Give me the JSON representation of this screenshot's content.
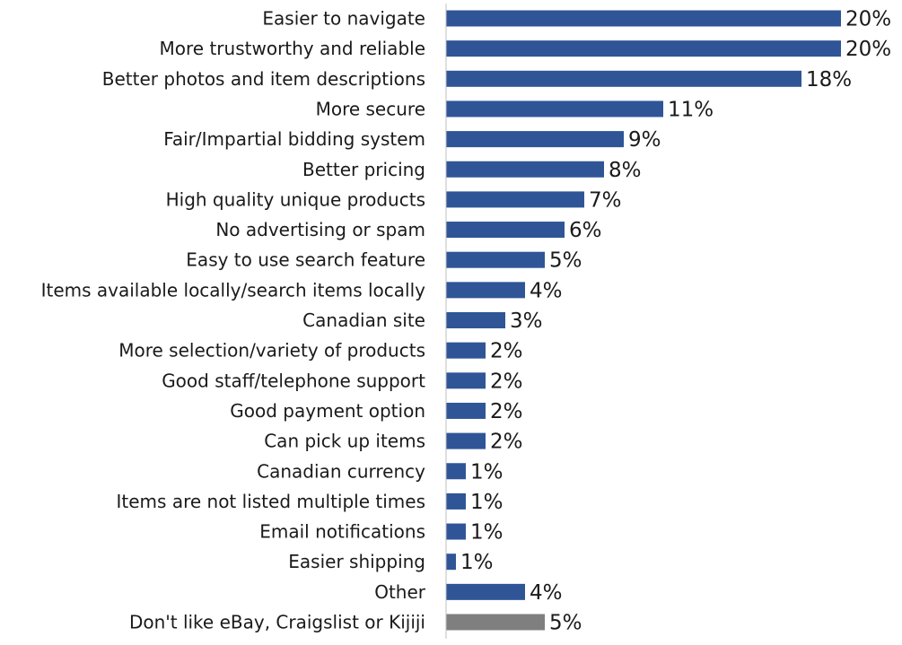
{
  "chart_data": {
    "type": "bar",
    "orientation": "horizontal",
    "categories": [
      "Easier to navigate",
      "More trustworthy and reliable",
      "Better photos and item descriptions",
      "More secure",
      "Fair/Impartial bidding system",
      "Better pricing",
      "High quality unique products",
      "No advertising or spam",
      "Easy to use search feature",
      "Items available locally/search items locally",
      "Canadian site",
      "More selection/variety of products",
      "Good staff/telephone support",
      "Good payment option",
      "Can pick up items",
      "Canadian currency",
      "Items are not listed multiple times",
      "Email notifications",
      "Easier shipping",
      "Other",
      "Don't like eBay, Craigslist or Kijiji"
    ],
    "values": [
      20,
      20,
      18,
      11,
      9,
      8,
      7,
      6,
      5,
      4,
      3,
      2,
      2,
      2,
      2,
      1,
      1,
      1,
      0.5,
      4,
      5
    ],
    "value_labels": [
      "20%",
      "20%",
      "18%",
      "11%",
      "9%",
      "8%",
      "7%",
      "6%",
      "5%",
      "4%",
      "3%",
      "2%",
      "2%",
      "2%",
      "2%",
      "1%",
      "1%",
      "1%",
      "1%",
      "4%",
      "5%"
    ],
    "bar_colors": [
      "#2f5597",
      "#2f5597",
      "#2f5597",
      "#2f5597",
      "#2f5597",
      "#2f5597",
      "#2f5597",
      "#2f5597",
      "#2f5597",
      "#2f5597",
      "#2f5597",
      "#2f5597",
      "#2f5597",
      "#2f5597",
      "#2f5597",
      "#2f5597",
      "#2f5597",
      "#2f5597",
      "#2f5597",
      "#2f5597",
      "#7f7f7f"
    ],
    "xlim": [
      0,
      20
    ],
    "grid": false,
    "legend": "none",
    "title": "",
    "xlabel": "",
    "ylabel": ""
  }
}
